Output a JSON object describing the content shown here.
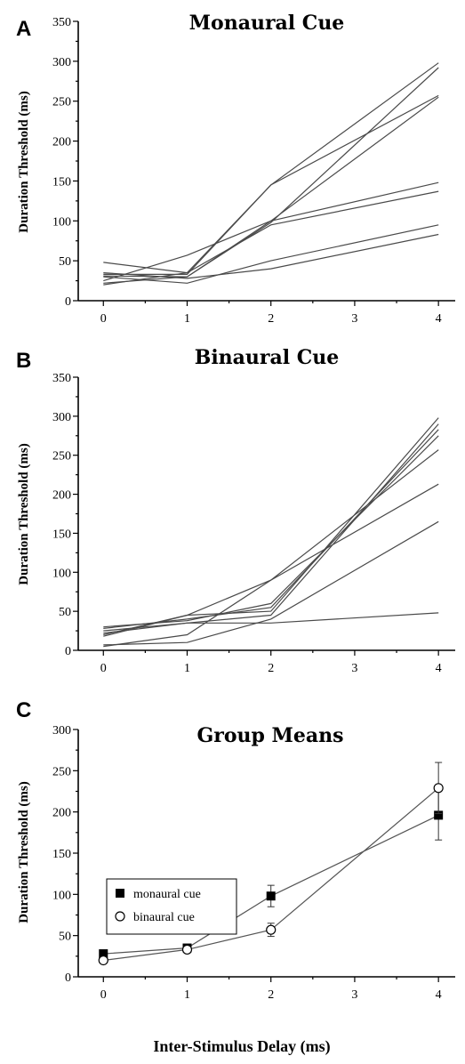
{
  "chart_data": [
    {
      "panel": "A",
      "type": "line",
      "title": "Monaural Cue",
      "ylabel": "Duration Threshold (ms)",
      "xlabel": "",
      "x": [
        0,
        1,
        2,
        4
      ],
      "xticks": [
        0,
        1,
        2,
        3,
        4
      ],
      "yticks": [
        0,
        50,
        100,
        150,
        200,
        250,
        300,
        350
      ],
      "ylim": [
        0,
        350
      ],
      "xlim": [
        -0.3,
        4.2
      ],
      "grid": false,
      "series": [
        {
          "values": [
            20,
            35,
            145,
            298
          ]
        },
        {
          "values": [
            33,
            33,
            145,
            257
          ]
        },
        {
          "values": [
            31,
            30,
            100,
            255
          ]
        },
        {
          "values": [
            22,
            30,
            98,
            292
          ]
        },
        {
          "values": [
            25,
            57,
            100,
            148
          ]
        },
        {
          "values": [
            48,
            35,
            95,
            137
          ]
        },
        {
          "values": [
            30,
            22,
            50,
            95
          ]
        },
        {
          "values": [
            35,
            28,
            40,
            83
          ]
        }
      ]
    },
    {
      "panel": "B",
      "type": "line",
      "title": "Binaural Cue",
      "ylabel": "Duration Threshold (ms)",
      "xlabel": "",
      "x": [
        0,
        1,
        2,
        4
      ],
      "xticks": [
        0,
        1,
        2,
        3,
        4
      ],
      "yticks": [
        0,
        50,
        100,
        150,
        200,
        250,
        300,
        350
      ],
      "ylim": [
        0,
        350
      ],
      "xlim": [
        -0.3,
        4.2
      ],
      "grid": false,
      "series": [
        {
          "values": [
            20,
            45,
            50,
            298
          ]
        },
        {
          "values": [
            25,
            35,
            45,
            290
          ]
        },
        {
          "values": [
            28,
            40,
            55,
            283
          ]
        },
        {
          "values": [
            30,
            38,
            60,
            275
          ]
        },
        {
          "values": [
            18,
            45,
            90,
            257
          ]
        },
        {
          "values": [
            5,
            20,
            90,
            213
          ]
        },
        {
          "values": [
            7,
            10,
            40,
            165
          ]
        },
        {
          "values": [
            22,
            35,
            35,
            48
          ]
        }
      ]
    },
    {
      "panel": "C",
      "type": "line",
      "title": "Group Means",
      "ylabel": "Duration Threshold (ms)",
      "xlabel": "Inter-Stimulus Delay (ms)",
      "x": [
        0,
        1,
        2,
        4
      ],
      "xticks": [
        0,
        1,
        2,
        3,
        4
      ],
      "yticks": [
        0,
        50,
        100,
        150,
        200,
        250,
        300
      ],
      "ylim": [
        0,
        300
      ],
      "xlim": [
        -0.3,
        4.2
      ],
      "grid": false,
      "legend_position": "left-middle",
      "series": [
        {
          "name": "monaural cue",
          "marker": "filled-square",
          "values": [
            28,
            35,
            98,
            196
          ],
          "errors": [
            3,
            4,
            13,
            30
          ]
        },
        {
          "name": "binaural cue",
          "marker": "open-circle",
          "values": [
            20,
            33,
            57,
            229
          ],
          "errors": [
            3,
            4,
            8,
            31
          ]
        }
      ]
    }
  ]
}
